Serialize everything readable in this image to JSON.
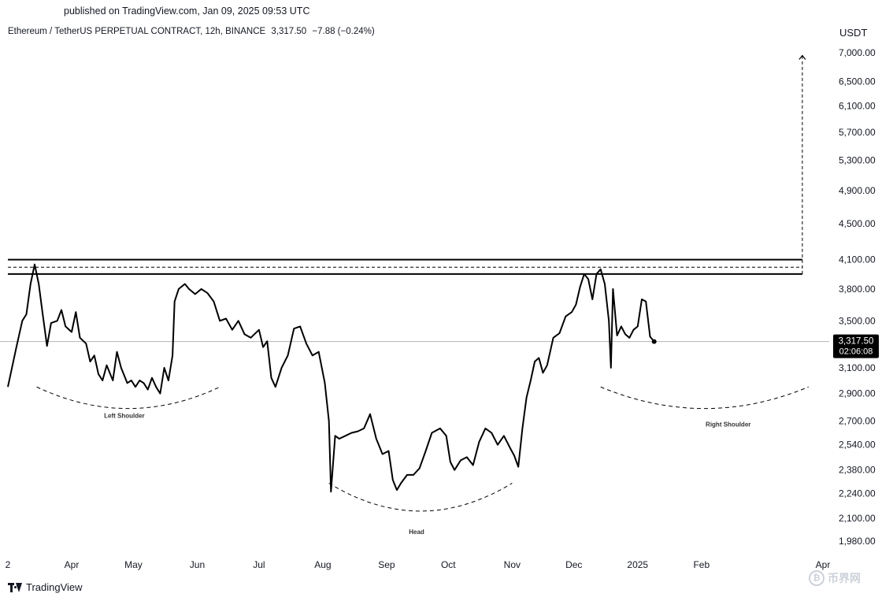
{
  "header": {
    "published": "published on TradingView.com, Jan 09, 2025 09:53 UTC",
    "symbol": "Ethereum / TetherUS PERPETUAL CONTRACT, 12h, BINANCE",
    "last_price": "3,317.50",
    "change": "−7.88 (−0.24%)"
  },
  "axis": {
    "currency": "USDT",
    "price_label": "3,317.50",
    "countdown": "02:06:08"
  },
  "footer": {
    "brand": "TradingView"
  },
  "watermark": {
    "text": "币界网",
    "coin_glyph": "₿"
  },
  "colors": {
    "line": "#000000",
    "price_marker": "#000000",
    "grid_line": "#b2b5be",
    "text": "#131722"
  },
  "chart_data": {
    "type": "line",
    "title": "Ethereum / TetherUS PERPETUAL CONTRACT, 12h, BINANCE",
    "xlabel": "",
    "ylabel": "USDT",
    "y_scale": "log",
    "ylim": [
      1900,
      7200
    ],
    "y_ticks": [
      7000,
      6500,
      6100,
      5700,
      5300,
      4900,
      4500,
      4100,
      3800,
      3500,
      3100,
      2900,
      2700,
      2540,
      2380,
      2240,
      2100,
      1980
    ],
    "y_tick_labels": [
      "7,000.00",
      "6,500.00",
      "6,100.00",
      "5,700.00",
      "5,300.00",
      "4,900.00",
      "4,500.00",
      "4,100.00",
      "3,800.00",
      "3,500.00",
      "3,100.00",
      "2,900.00",
      "2,700.00",
      "2,540.00",
      "2,380.00",
      "2,240.00",
      "2,100.00",
      "1,980.00"
    ],
    "xlim": [
      "2024-03-01",
      "2025-04-01"
    ],
    "x_ticks": [
      {
        "date": "2024-03-01",
        "label": "2"
      },
      {
        "date": "2024-04-01",
        "label": "Apr"
      },
      {
        "date": "2024-05-01",
        "label": "May"
      },
      {
        "date": "2024-06-01",
        "label": "Jun"
      },
      {
        "date": "2024-07-01",
        "label": "Jul"
      },
      {
        "date": "2024-08-01",
        "label": "Aug"
      },
      {
        "date": "2024-09-01",
        "label": "Sep"
      },
      {
        "date": "2024-10-01",
        "label": "Oct"
      },
      {
        "date": "2024-11-01",
        "label": "Nov"
      },
      {
        "date": "2024-12-01",
        "label": "Dec"
      },
      {
        "date": "2025-01-01",
        "label": "2025"
      },
      {
        "date": "2025-02-01",
        "label": "Feb"
      },
      {
        "date": "2025-04-01",
        "label": "Apr"
      }
    ],
    "grid": false,
    "series": [
      {
        "x": [
          "2024-03-01",
          "2024-03-03",
          "2024-03-05",
          "2024-03-08",
          "2024-03-10",
          "2024-03-12",
          "2024-03-14",
          "2024-03-16",
          "2024-03-18",
          "2024-03-20",
          "2024-03-22",
          "2024-03-25",
          "2024-03-27",
          "2024-03-29",
          "2024-04-01",
          "2024-04-03",
          "2024-04-05",
          "2024-04-08",
          "2024-04-10",
          "2024-04-12",
          "2024-04-14",
          "2024-04-16",
          "2024-04-18",
          "2024-04-21",
          "2024-04-23",
          "2024-04-25",
          "2024-04-28",
          "2024-04-30",
          "2024-05-02",
          "2024-05-04",
          "2024-05-06",
          "2024-05-08",
          "2024-05-10",
          "2024-05-12",
          "2024-05-14",
          "2024-05-16",
          "2024-05-18",
          "2024-05-20",
          "2024-05-21",
          "2024-05-23",
          "2024-05-26",
          "2024-05-28",
          "2024-05-31",
          "2024-06-03",
          "2024-06-06",
          "2024-06-09",
          "2024-06-12",
          "2024-06-15",
          "2024-06-18",
          "2024-06-21",
          "2024-06-24",
          "2024-06-27",
          "2024-07-01",
          "2024-07-03",
          "2024-07-05",
          "2024-07-07",
          "2024-07-09",
          "2024-07-12",
          "2024-07-15",
          "2024-07-18",
          "2024-07-21",
          "2024-07-24",
          "2024-07-27",
          "2024-07-30",
          "2024-08-02",
          "2024-08-04",
          "2024-08-05",
          "2024-08-07",
          "2024-08-09",
          "2024-08-12",
          "2024-08-15",
          "2024-08-18",
          "2024-08-21",
          "2024-08-24",
          "2024-08-27",
          "2024-08-30",
          "2024-09-02",
          "2024-09-04",
          "2024-09-06",
          "2024-09-08",
          "2024-09-11",
          "2024-09-14",
          "2024-09-17",
          "2024-09-20",
          "2024-09-23",
          "2024-09-27",
          "2024-09-30",
          "2024-10-02",
          "2024-10-04",
          "2024-10-07",
          "2024-10-10",
          "2024-10-13",
          "2024-10-16",
          "2024-10-19",
          "2024-10-22",
          "2024-10-25",
          "2024-10-28",
          "2024-10-31",
          "2024-11-02",
          "2024-11-04",
          "2024-11-06",
          "2024-11-08",
          "2024-11-10",
          "2024-11-12",
          "2024-11-14",
          "2024-11-16",
          "2024-11-18",
          "2024-11-21",
          "2024-11-24",
          "2024-11-27",
          "2024-11-30",
          "2024-12-02",
          "2024-12-04",
          "2024-12-06",
          "2024-12-08",
          "2024-12-10",
          "2024-12-12",
          "2024-12-14",
          "2024-12-16",
          "2024-12-18",
          "2024-12-19",
          "2024-12-20",
          "2024-12-22",
          "2024-12-24",
          "2024-12-26",
          "2024-12-28",
          "2024-12-30",
          "2025-01-01",
          "2025-01-03",
          "2025-01-05",
          "2025-01-07",
          "2025-01-09"
        ],
        "y": [
          2950,
          3100,
          3260,
          3500,
          3560,
          3850,
          4050,
          3850,
          3550,
          3280,
          3480,
          3500,
          3600,
          3450,
          3400,
          3580,
          3350,
          3300,
          3150,
          3200,
          3050,
          3000,
          3120,
          3000,
          3230,
          3100,
          2980,
          3000,
          2950,
          3000,
          2980,
          2930,
          3020,
          2950,
          2900,
          3100,
          3000,
          3200,
          3680,
          3800,
          3850,
          3800,
          3750,
          3800,
          3760,
          3680,
          3500,
          3520,
          3420,
          3500,
          3380,
          3350,
          3420,
          3270,
          3320,
          3020,
          2950,
          3100,
          3200,
          3430,
          3450,
          3300,
          3200,
          3230,
          2980,
          2700,
          2250,
          2600,
          2580,
          2600,
          2620,
          2630,
          2650,
          2750,
          2580,
          2480,
          2500,
          2320,
          2260,
          2300,
          2350,
          2350,
          2390,
          2500,
          2620,
          2650,
          2600,
          2430,
          2380,
          2440,
          2460,
          2410,
          2560,
          2650,
          2620,
          2540,
          2600,
          2520,
          2470,
          2400,
          2650,
          2870,
          3000,
          3150,
          3180,
          3060,
          3120,
          3350,
          3390,
          3540,
          3580,
          3650,
          3820,
          3950,
          3900,
          3700,
          3950,
          4000,
          3850,
          3500,
          3100,
          3800,
          3370,
          3450,
          3380,
          3350,
          3420,
          3450,
          3700,
          3680,
          3360,
          3317.5
        ]
      }
    ],
    "annotations": [
      {
        "type": "resistance_band",
        "label": "",
        "upper": 4100,
        "lower": 3950,
        "middle_dashed": 4020,
        "x_start": "2024-03-01",
        "x_end": "2025-03-22"
      },
      {
        "type": "target_arrow",
        "label": "",
        "x": "2025-03-22",
        "from": 3950,
        "to": 6950
      },
      {
        "type": "arc",
        "label": "Left Shoulder",
        "x_start": "2024-03-15",
        "x_end": "2024-06-12",
        "y_edge": 2950,
        "y_bottom": 2790,
        "label_y": 2740
      },
      {
        "type": "arc",
        "label": "Head",
        "x_start": "2024-08-04",
        "x_end": "2024-11-01",
        "y_edge": 2300,
        "y_bottom": 2140,
        "label_y": 2030
      },
      {
        "type": "arc",
        "label": "Right Shoulder",
        "x_start": "2024-12-14",
        "x_end": "2025-03-25",
        "y_edge": 2950,
        "y_bottom": 2790,
        "label_y": 2680
      }
    ],
    "current_price": 3317.5
  }
}
